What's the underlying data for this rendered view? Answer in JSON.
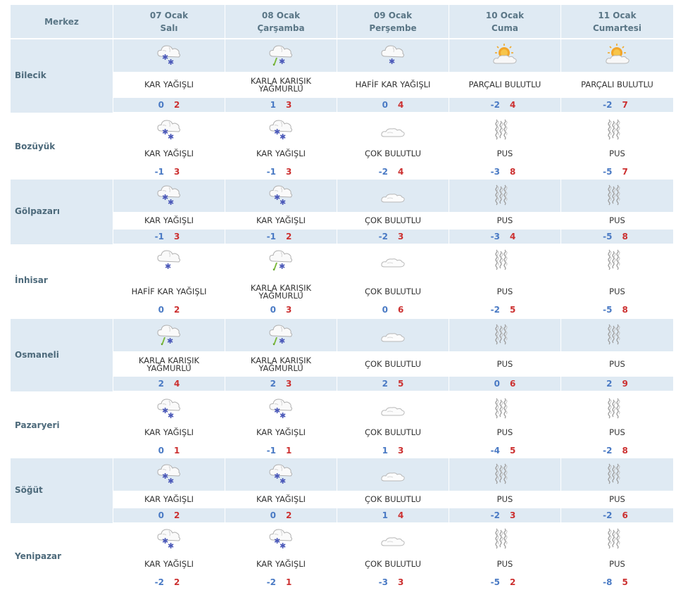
{
  "header": {
    "city_label": "Merkez",
    "days": [
      {
        "date": "07 Ocak",
        "day": "Salı"
      },
      {
        "date": "08 Ocak",
        "day": "Çarşamba"
      },
      {
        "date": "09 Ocak",
        "day": "Perşembe"
      },
      {
        "date": "10 Ocak",
        "day": "Cuma"
      },
      {
        "date": "11 Ocak",
        "day": "Cumartesi"
      }
    ]
  },
  "cities": [
    {
      "name": "Bilecik",
      "forecasts": [
        {
          "icon": "snow-heavy-icon",
          "desc": "KAR YAĞIŞLI",
          "min": "0",
          "max": "2"
        },
        {
          "icon": "sleet-icon",
          "desc": "KARLA KARIŞIK YAĞMURLU",
          "min": "1",
          "max": "3"
        },
        {
          "icon": "snow-light-icon",
          "desc": "HAFİF KAR YAĞIŞLI",
          "min": "0",
          "max": "4"
        },
        {
          "icon": "partly-cloudy-icon",
          "desc": "PARÇALI BULUTLU",
          "min": "-2",
          "max": "4"
        },
        {
          "icon": "partly-cloudy-icon",
          "desc": "PARÇALI BULUTLU",
          "min": "-2",
          "max": "7"
        }
      ]
    },
    {
      "name": "Bozüyük",
      "forecasts": [
        {
          "icon": "snow-heavy-icon",
          "desc": "KAR YAĞIŞLI",
          "min": "-1",
          "max": "3"
        },
        {
          "icon": "snow-heavy-icon",
          "desc": "KAR YAĞIŞLI",
          "min": "-1",
          "max": "3"
        },
        {
          "icon": "cloudy-icon",
          "desc": "ÇOK BULUTLU",
          "min": "-2",
          "max": "4"
        },
        {
          "icon": "fog-icon",
          "desc": "PUS",
          "min": "-3",
          "max": "8"
        },
        {
          "icon": "fog-icon",
          "desc": "PUS",
          "min": "-5",
          "max": "7"
        }
      ]
    },
    {
      "name": "Gölpazarı",
      "forecasts": [
        {
          "icon": "snow-heavy-icon",
          "desc": "KAR YAĞIŞLI",
          "min": "-1",
          "max": "3"
        },
        {
          "icon": "snow-heavy-icon",
          "desc": "KAR YAĞIŞLI",
          "min": "-1",
          "max": "2"
        },
        {
          "icon": "cloudy-icon",
          "desc": "ÇOK BULUTLU",
          "min": "-2",
          "max": "3"
        },
        {
          "icon": "fog-icon",
          "desc": "PUS",
          "min": "-3",
          "max": "4"
        },
        {
          "icon": "fog-icon",
          "desc": "PUS",
          "min": "-5",
          "max": "8"
        }
      ]
    },
    {
      "name": "İnhisar",
      "forecasts": [
        {
          "icon": "snow-light-icon",
          "desc": "HAFİF KAR YAĞIŞLI",
          "min": "0",
          "max": "2"
        },
        {
          "icon": "sleet-icon",
          "desc": "KARLA KARIŞIK YAĞMURLU",
          "min": "0",
          "max": "3"
        },
        {
          "icon": "cloudy-icon",
          "desc": "ÇOK BULUTLU",
          "min": "0",
          "max": "6"
        },
        {
          "icon": "fog-icon",
          "desc": "PUS",
          "min": "-2",
          "max": "5"
        },
        {
          "icon": "fog-icon",
          "desc": "PUS",
          "min": "-5",
          "max": "8"
        }
      ]
    },
    {
      "name": "Osmaneli",
      "forecasts": [
        {
          "icon": "sleet-icon",
          "desc": "KARLA KARIŞIK YAĞMURLU",
          "min": "2",
          "max": "4"
        },
        {
          "icon": "sleet-icon",
          "desc": "KARLA KARIŞIK YAĞMURLU",
          "min": "2",
          "max": "3"
        },
        {
          "icon": "cloudy-icon",
          "desc": "ÇOK BULUTLU",
          "min": "2",
          "max": "5"
        },
        {
          "icon": "fog-icon",
          "desc": "PUS",
          "min": "0",
          "max": "6"
        },
        {
          "icon": "fog-icon",
          "desc": "PUS",
          "min": "2",
          "max": "9"
        }
      ]
    },
    {
      "name": "Pazaryeri",
      "forecasts": [
        {
          "icon": "snow-heavy-icon",
          "desc": "KAR YAĞIŞLI",
          "min": "0",
          "max": "1"
        },
        {
          "icon": "snow-heavy-icon",
          "desc": "KAR YAĞIŞLI",
          "min": "-1",
          "max": "1"
        },
        {
          "icon": "cloudy-icon",
          "desc": "ÇOK BULUTLU",
          "min": "1",
          "max": "3"
        },
        {
          "icon": "fog-icon",
          "desc": "PUS",
          "min": "-4",
          "max": "5"
        },
        {
          "icon": "fog-icon",
          "desc": "PUS",
          "min": "-2",
          "max": "8"
        }
      ]
    },
    {
      "name": "Söğüt",
      "forecasts": [
        {
          "icon": "snow-heavy-icon",
          "desc": "KAR YAĞIŞLI",
          "min": "0",
          "max": "2"
        },
        {
          "icon": "snow-heavy-icon",
          "desc": "KAR YAĞIŞLI",
          "min": "0",
          "max": "2"
        },
        {
          "icon": "cloudy-icon",
          "desc": "ÇOK BULUTLU",
          "min": "1",
          "max": "4"
        },
        {
          "icon": "fog-icon",
          "desc": "PUS",
          "min": "-2",
          "max": "3"
        },
        {
          "icon": "fog-icon",
          "desc": "PUS",
          "min": "-2",
          "max": "6"
        }
      ]
    },
    {
      "name": "Yenipazar",
      "forecasts": [
        {
          "icon": "snow-heavy-icon",
          "desc": "KAR YAĞIŞLI",
          "min": "-2",
          "max": "2"
        },
        {
          "icon": "snow-heavy-icon",
          "desc": "KAR YAĞIŞLI",
          "min": "-2",
          "max": "1"
        },
        {
          "icon": "cloudy-icon",
          "desc": "ÇOK BULUTLU",
          "min": "-3",
          "max": "3"
        },
        {
          "icon": "fog-icon",
          "desc": "PUS",
          "min": "-5",
          "max": "2"
        },
        {
          "icon": "fog-icon",
          "desc": "PUS",
          "min": "-8",
          "max": "5"
        }
      ]
    }
  ],
  "colors": {
    "band": "#dfeaf3",
    "min_temp": "#4a7ac4",
    "max_temp": "#cc3030",
    "city_text": "#4d6a7b"
  }
}
